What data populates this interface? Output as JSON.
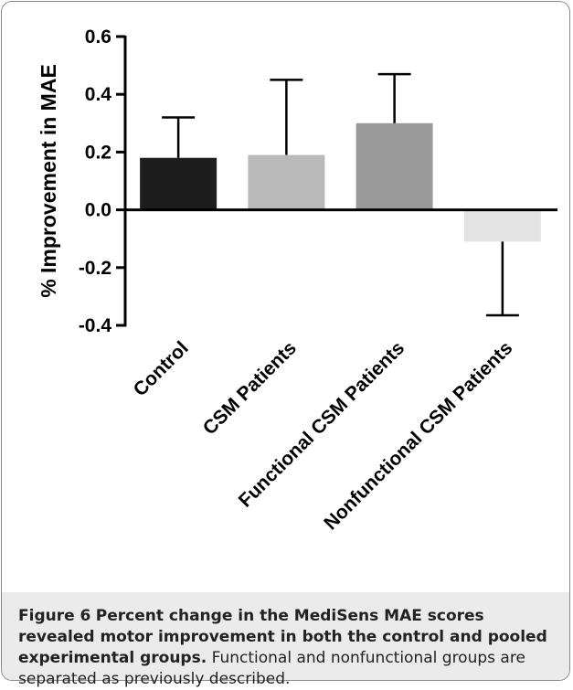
{
  "chart_data": {
    "type": "bar",
    "title": "",
    "xlabel": "",
    "ylabel": "% Improvement in MAE",
    "ylim": [
      -0.4,
      0.6
    ],
    "yticks": [
      "0.6",
      "0.4",
      "0.2",
      "0.0",
      "-0.2",
      "-0.4"
    ],
    "categories": [
      "Control",
      "CSM Patients",
      "Functional CSM Patients",
      "Nonfunctional CSM Patients"
    ],
    "values": [
      0.18,
      0.19,
      0.3,
      -0.11
    ],
    "error_bars": [
      0.32,
      0.45,
      0.47,
      -0.365
    ],
    "bar_colors": [
      "#1d1d1d",
      "#b9b9b9",
      "#9a9a9a",
      "#e3e3e3"
    ],
    "grid": false
  },
  "caption": {
    "label": "Figure 6",
    "bold_text": "Percent change in the MediSens MAE scores revealed motor improvement in both the control and pooled experimental groups.",
    "text": "Functional and nonfunctional groups are separated as previously described."
  }
}
